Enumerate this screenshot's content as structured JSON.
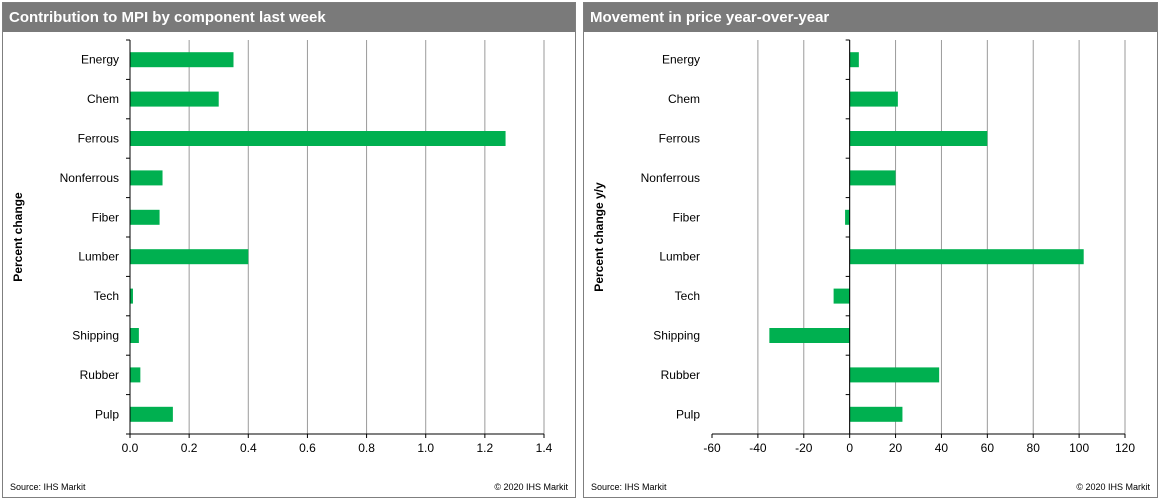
{
  "footer": {
    "source": "Source:  IHS Markit",
    "copyright": "© 2020  IHS Markit"
  },
  "chart_data": [
    {
      "type": "bar",
      "orientation": "horizontal",
      "title": "Contribution to MPI by component last week",
      "ylabel": "Percent change",
      "xlabel": "",
      "categories": [
        "Energy",
        "Chem",
        "Ferrous",
        "Nonferrous",
        "Fiber",
        "Lumber",
        "Tech",
        "Shipping",
        "Rubber",
        "Pulp"
      ],
      "values": [
        0.35,
        0.3,
        1.27,
        0.11,
        0.1,
        0.4,
        0.01,
        0.03,
        0.035,
        0.145
      ],
      "xlim": [
        0,
        1.4
      ],
      "xticks": [
        "0.0",
        "0.2",
        "0.4",
        "0.6",
        "0.8",
        "1.0",
        "1.2",
        "1.4"
      ],
      "grid": "vertical",
      "bar_color": "#00b050"
    },
    {
      "type": "bar",
      "orientation": "horizontal",
      "title": "Movement in price year-over-year",
      "ylabel": "Percent change y/y",
      "xlabel": "",
      "categories": [
        "Energy",
        "Chem",
        "Ferrous",
        "Nonferrous",
        "Fiber",
        "Lumber",
        "Tech",
        "Shipping",
        "Rubber",
        "Pulp"
      ],
      "values": [
        4,
        21,
        60,
        20,
        -2,
        102,
        -7,
        -35,
        39,
        23
      ],
      "xlim": [
        -60,
        120
      ],
      "xticks": [
        "-60",
        "-40",
        "-20",
        "0",
        "20",
        "40",
        "60",
        "80",
        "100",
        "120"
      ],
      "grid": "vertical",
      "bar_color": "#00b050"
    }
  ]
}
